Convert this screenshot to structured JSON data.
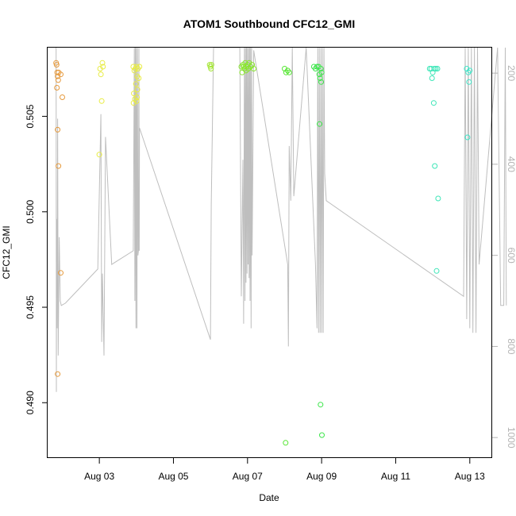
{
  "chart_data": {
    "type": "scatter",
    "title": "ATOM1 Southbound CFC12_GMI",
    "xlabel": "Date",
    "ylabel": "CFC12_GMI",
    "xlim": [
      "2016-08-01T14:30",
      "2016-08-13T14:30"
    ],
    "ylim": [
      0.4871,
      0.5086
    ],
    "x_ticks": [
      {
        "label": "Aug 03",
        "value": "2016-08-03"
      },
      {
        "label": "Aug 05",
        "value": "2016-08-05"
      },
      {
        "label": "Aug 07",
        "value": "2016-08-07"
      },
      {
        "label": "Aug 09",
        "value": "2016-08-09"
      },
      {
        "label": "Aug 11",
        "value": "2016-08-11"
      },
      {
        "label": "Aug 13",
        "value": "2016-08-13"
      }
    ],
    "y_ticks": [
      {
        "label": "0.490",
        "value": 0.49
      },
      {
        "label": "0.495",
        "value": 0.495
      },
      {
        "label": "0.500",
        "value": 0.5
      },
      {
        "label": "0.505",
        "value": 0.505
      }
    ],
    "secondary_axis": {
      "side": "right",
      "lim": [
        1045,
        144
      ],
      "ticks": [
        {
          "label": "200",
          "value": 200
        },
        {
          "label": "400",
          "value": 400
        },
        {
          "label": "600",
          "value": 600
        },
        {
          "label": "800",
          "value": 800
        },
        {
          "label": "1000",
          "value": 1000
        }
      ]
    },
    "pressure_profile": [
      [
        "2016-08-01T20:00",
        144
      ],
      [
        "2016-08-01T20:10",
        900
      ],
      [
        "2016-08-01T20:20",
        520
      ],
      [
        "2016-08-01T20:40",
        760
      ],
      [
        "2016-08-01T21:00",
        300
      ],
      [
        "2016-08-01T21:20",
        820
      ],
      [
        "2016-08-01T22:00",
        560
      ],
      [
        "2016-08-01T22:40",
        700
      ],
      [
        "2016-08-01T23:20",
        710
      ],
      [
        "2016-08-02T02:00",
        705
      ],
      [
        "2016-08-02T23:00",
        630
      ],
      [
        "2016-08-03T01:00",
        290
      ],
      [
        "2016-08-03T01:30",
        790
      ],
      [
        "2016-08-03T02:00",
        640
      ],
      [
        "2016-08-03T03:00",
        820
      ],
      [
        "2016-08-03T04:00",
        340
      ],
      [
        "2016-08-03T08:00",
        620
      ],
      [
        "2016-08-03T22:00",
        590
      ],
      [
        "2016-08-03T22:40",
        144
      ],
      [
        "2016-08-03T23:00",
        700
      ],
      [
        "2016-08-03T23:20",
        144
      ],
      [
        "2016-08-03T23:40",
        760
      ],
      [
        "2016-08-04T00:00",
        144
      ],
      [
        "2016-08-04T00:20",
        760
      ],
      [
        "2016-08-04T00:40",
        144
      ],
      [
        "2016-08-04T01:00",
        600
      ],
      [
        "2016-08-04T01:20",
        590
      ],
      [
        "2016-08-04T01:40",
        144
      ],
      [
        "2016-08-04T01:50",
        590
      ],
      [
        "2016-08-04T02:00",
        320
      ],
      [
        "2016-08-06T00:00",
        785
      ],
      [
        "2016-08-06T00:30",
        490
      ],
      [
        "2016-08-06T02:00",
        144
      ],
      [
        "2016-08-06T19:00",
        144
      ],
      [
        "2016-08-06T20:00",
        690
      ],
      [
        "2016-08-06T21:00",
        390
      ],
      [
        "2016-08-06T21:30",
        750
      ],
      [
        "2016-08-06T22:00",
        144
      ],
      [
        "2016-08-06T22:20",
        700
      ],
      [
        "2016-08-06T22:40",
        144
      ],
      [
        "2016-08-06T23:00",
        660
      ],
      [
        "2016-08-06T23:20",
        144
      ],
      [
        "2016-08-06T23:40",
        640
      ],
      [
        "2016-08-07T00:00",
        144
      ],
      [
        "2016-08-07T00:20",
        620
      ],
      [
        "2016-08-07T00:40",
        144
      ],
      [
        "2016-08-07T01:00",
        650
      ],
      [
        "2016-08-07T01:20",
        144
      ],
      [
        "2016-08-07T01:40",
        700
      ],
      [
        "2016-08-07T02:00",
        144
      ],
      [
        "2016-08-07T02:20",
        760
      ],
      [
        "2016-08-07T02:40",
        144
      ],
      [
        "2016-08-07T03:00",
        600
      ],
      [
        "2016-08-07T04:00",
        150
      ],
      [
        "2016-08-08T02:00",
        620
      ],
      [
        "2016-08-08T02:30",
        800
      ],
      [
        "2016-08-08T03:00",
        360
      ],
      [
        "2016-08-08T04:00",
        480
      ],
      [
        "2016-08-08T05:00",
        144
      ],
      [
        "2016-08-08T06:00",
        470
      ],
      [
        "2016-08-08T14:00",
        144
      ],
      [
        "2016-08-08T20:00",
        620
      ],
      [
        "2016-08-08T21:00",
        760
      ],
      [
        "2016-08-08T21:30",
        144
      ],
      [
        "2016-08-08T22:00",
        770
      ],
      [
        "2016-08-08T22:30",
        144
      ],
      [
        "2016-08-08T23:00",
        770
      ],
      [
        "2016-08-08T23:30",
        144
      ],
      [
        "2016-08-09T00:00",
        770
      ],
      [
        "2016-08-09T00:30",
        144
      ],
      [
        "2016-08-09T01:00",
        770
      ],
      [
        "2016-08-09T01:30",
        144
      ],
      [
        "2016-08-09T02:00",
        420
      ],
      [
        "2016-08-09T03:00",
        480
      ],
      [
        "2016-08-12T20:00",
        690
      ],
      [
        "2016-08-12T21:00",
        144
      ],
      [
        "2016-08-12T22:00",
        740
      ],
      [
        "2016-08-12T23:00",
        144
      ],
      [
        "2016-08-13T00:00",
        760
      ],
      [
        "2016-08-13T01:00",
        144
      ],
      [
        "2016-08-13T02:00",
        770
      ],
      [
        "2016-08-13T03:00",
        144
      ],
      [
        "2016-08-13T04:00",
        770
      ],
      [
        "2016-08-13T05:00",
        144
      ],
      [
        "2016-08-13T06:00",
        620
      ],
      [
        "2016-08-13T18:00",
        144
      ],
      [
        "2016-08-13T20:00",
        710
      ],
      [
        "2016-08-13T22:00",
        710
      ],
      [
        "2016-08-13T23:00",
        144
      ],
      [
        "2016-08-13T23:40",
        710
      ]
    ],
    "points": [
      {
        "x": "2016-08-01T20:00",
        "y": 0.5078,
        "color": "#e69a3d"
      },
      {
        "x": "2016-08-01T20:20",
        "y": 0.5077,
        "color": "#e69a3d"
      },
      {
        "x": "2016-08-01T20:40",
        "y": 0.5073,
        "color": "#e69a3d"
      },
      {
        "x": "2016-08-01T21:00",
        "y": 0.5071,
        "color": "#e69a3d"
      },
      {
        "x": "2016-08-01T21:20",
        "y": 0.5069,
        "color": "#e69a3d"
      },
      {
        "x": "2016-08-01T20:30",
        "y": 0.5065,
        "color": "#e69a3d"
      },
      {
        "x": "2016-08-01T21:40",
        "y": 0.5073,
        "color": "#e69a3d"
      },
      {
        "x": "2016-08-01T23:00",
        "y": 0.5072,
        "color": "#e69a3d"
      },
      {
        "x": "2016-08-02T00:00",
        "y": 0.506,
        "color": "#e69a3d"
      },
      {
        "x": "2016-08-01T21:00",
        "y": 0.5043,
        "color": "#e69a3d"
      },
      {
        "x": "2016-08-01T21:30",
        "y": 0.5024,
        "color": "#e69a3d"
      },
      {
        "x": "2016-08-01T23:00",
        "y": 0.4968,
        "color": "#e69a3d"
      },
      {
        "x": "2016-08-01T21:00",
        "y": 0.4915,
        "color": "#e69a3d"
      },
      {
        "x": "2016-08-03T00:30",
        "y": 0.5075,
        "color": "#e8ec45"
      },
      {
        "x": "2016-08-03T01:00",
        "y": 0.5072,
        "color": "#e8ec45"
      },
      {
        "x": "2016-08-03T02:00",
        "y": 0.5078,
        "color": "#e8ec45"
      },
      {
        "x": "2016-08-03T02:20",
        "y": 0.5076,
        "color": "#e8ec45"
      },
      {
        "x": "2016-08-03T01:30",
        "y": 0.5058,
        "color": "#e8ec45"
      },
      {
        "x": "2016-08-03T00:00",
        "y": 0.503,
        "color": "#e8ec45"
      },
      {
        "x": "2016-08-03T22:00",
        "y": 0.5076,
        "color": "#e8ec45"
      },
      {
        "x": "2016-08-03T22:40",
        "y": 0.5074,
        "color": "#e8ec45"
      },
      {
        "x": "2016-08-03T23:20",
        "y": 0.5075,
        "color": "#e8ec45"
      },
      {
        "x": "2016-08-04T00:00",
        "y": 0.5076,
        "color": "#e8ec45"
      },
      {
        "x": "2016-08-04T01:00",
        "y": 0.5075,
        "color": "#e8ec45"
      },
      {
        "x": "2016-08-04T02:00",
        "y": 0.5076,
        "color": "#e8ec45"
      },
      {
        "x": "2016-08-04T00:30",
        "y": 0.5071,
        "color": "#e8ec45"
      },
      {
        "x": "2016-08-04T01:30",
        "y": 0.507,
        "color": "#e8ec45"
      },
      {
        "x": "2016-08-03T23:40",
        "y": 0.5067,
        "color": "#e8ec45"
      },
      {
        "x": "2016-08-04T00:40",
        "y": 0.5064,
        "color": "#e8ec45"
      },
      {
        "x": "2016-08-03T22:20",
        "y": 0.5062,
        "color": "#e8ec45"
      },
      {
        "x": "2016-08-04T00:20",
        "y": 0.506,
        "color": "#e8ec45"
      },
      {
        "x": "2016-08-03T23:00",
        "y": 0.5059,
        "color": "#e8ec45"
      },
      {
        "x": "2016-08-03T22:10",
        "y": 0.5057,
        "color": "#e8ec45"
      },
      {
        "x": "2016-08-04T00:10",
        "y": 0.5058,
        "color": "#e8ec45"
      },
      {
        "x": "2016-08-05T23:30",
        "y": 0.5077,
        "color": "#a6e639"
      },
      {
        "x": "2016-08-06T00:00",
        "y": 0.5076,
        "color": "#a6e639"
      },
      {
        "x": "2016-08-06T00:20",
        "y": 0.5075,
        "color": "#a6e639"
      },
      {
        "x": "2016-08-06T00:40",
        "y": 0.5077,
        "color": "#a6e639"
      },
      {
        "x": "2016-08-06T20:00",
        "y": 0.5076,
        "color": "#88e62e"
      },
      {
        "x": "2016-08-06T20:30",
        "y": 0.5073,
        "color": "#88e62e"
      },
      {
        "x": "2016-08-06T21:00",
        "y": 0.5077,
        "color": "#88e62e"
      },
      {
        "x": "2016-08-06T21:30",
        "y": 0.5076,
        "color": "#88e62e"
      },
      {
        "x": "2016-08-06T22:00",
        "y": 0.5075,
        "color": "#88e62e"
      },
      {
        "x": "2016-08-06T22:30",
        "y": 0.5078,
        "color": "#88e62e"
      },
      {
        "x": "2016-08-06T23:00",
        "y": 0.5074,
        "color": "#88e62e"
      },
      {
        "x": "2016-08-06T23:30",
        "y": 0.5076,
        "color": "#88e62e"
      },
      {
        "x": "2016-08-07T00:00",
        "y": 0.5077,
        "color": "#88e62e"
      },
      {
        "x": "2016-08-07T00:30",
        "y": 0.5075,
        "color": "#88e62e"
      },
      {
        "x": "2016-08-07T01:00",
        "y": 0.5078,
        "color": "#88e62e"
      },
      {
        "x": "2016-08-07T02:00",
        "y": 0.5076,
        "color": "#88e62e"
      },
      {
        "x": "2016-08-07T03:00",
        "y": 0.5077,
        "color": "#88e62e"
      },
      {
        "x": "2016-08-07T04:00",
        "y": 0.5075,
        "color": "#88e62e"
      },
      {
        "x": "2016-08-08T00:00",
        "y": 0.5075,
        "color": "#55e632"
      },
      {
        "x": "2016-08-08T01:00",
        "y": 0.5073,
        "color": "#55e632"
      },
      {
        "x": "2016-08-08T02:00",
        "y": 0.5074,
        "color": "#55e632"
      },
      {
        "x": "2016-08-08T03:00",
        "y": 0.5073,
        "color": "#55e632"
      },
      {
        "x": "2016-08-08T00:40",
        "y": 0.4879,
        "color": "#55e632"
      },
      {
        "x": "2016-08-08T19:00",
        "y": 0.5076,
        "color": "#3de64b"
      },
      {
        "x": "2016-08-08T20:00",
        "y": 0.5075,
        "color": "#3de64b"
      },
      {
        "x": "2016-08-08T21:00",
        "y": 0.5076,
        "color": "#3de64b"
      },
      {
        "x": "2016-08-08T22:00",
        "y": 0.5076,
        "color": "#3de64b"
      },
      {
        "x": "2016-08-08T22:30",
        "y": 0.5072,
        "color": "#3de64b"
      },
      {
        "x": "2016-08-08T23:30",
        "y": 0.5075,
        "color": "#3de64b"
      },
      {
        "x": "2016-08-09T00:00",
        "y": 0.5073,
        "color": "#3de64b"
      },
      {
        "x": "2016-08-08T23:00",
        "y": 0.507,
        "color": "#3de64b"
      },
      {
        "x": "2016-08-08T23:40",
        "y": 0.5068,
        "color": "#3de64b"
      },
      {
        "x": "2016-08-08T22:40",
        "y": 0.5046,
        "color": "#3de64b"
      },
      {
        "x": "2016-08-08T23:20",
        "y": 0.4899,
        "color": "#3de64b"
      },
      {
        "x": "2016-08-09T00:10",
        "y": 0.4883,
        "color": "#3de64b"
      },
      {
        "x": "2016-08-11T22:00",
        "y": 0.5075,
        "color": "#3ee6b8"
      },
      {
        "x": "2016-08-11T23:00",
        "y": 0.5075,
        "color": "#3ee6b8"
      },
      {
        "x": "2016-08-12T00:00",
        "y": 0.5073,
        "color": "#3ee6b8"
      },
      {
        "x": "2016-08-12T01:00",
        "y": 0.5075,
        "color": "#3ee6b8"
      },
      {
        "x": "2016-08-12T02:00",
        "y": 0.5075,
        "color": "#3ee6b8"
      },
      {
        "x": "2016-08-12T03:00",
        "y": 0.5075,
        "color": "#3ee6b8"
      },
      {
        "x": "2016-08-11T23:30",
        "y": 0.507,
        "color": "#3ee6b8"
      },
      {
        "x": "2016-08-12T00:40",
        "y": 0.5057,
        "color": "#3ee6b8"
      },
      {
        "x": "2016-08-12T01:20",
        "y": 0.5024,
        "color": "#3ee6b8"
      },
      {
        "x": "2016-08-12T03:30",
        "y": 0.5007,
        "color": "#3ee6b8"
      },
      {
        "x": "2016-08-12T02:30",
        "y": 0.4969,
        "color": "#3ee6b8"
      },
      {
        "x": "2016-08-12T22:00",
        "y": 0.5075,
        "color": "#3ee6c8"
      },
      {
        "x": "2016-08-12T23:00",
        "y": 0.5073,
        "color": "#3ee6c8"
      },
      {
        "x": "2016-08-13T00:00",
        "y": 0.5074,
        "color": "#3ee6c8"
      },
      {
        "x": "2016-08-12T23:30",
        "y": 0.5068,
        "color": "#3ee6c8"
      },
      {
        "x": "2016-08-12T22:30",
        "y": 0.5039,
        "color": "#3ee6c8"
      }
    ]
  }
}
